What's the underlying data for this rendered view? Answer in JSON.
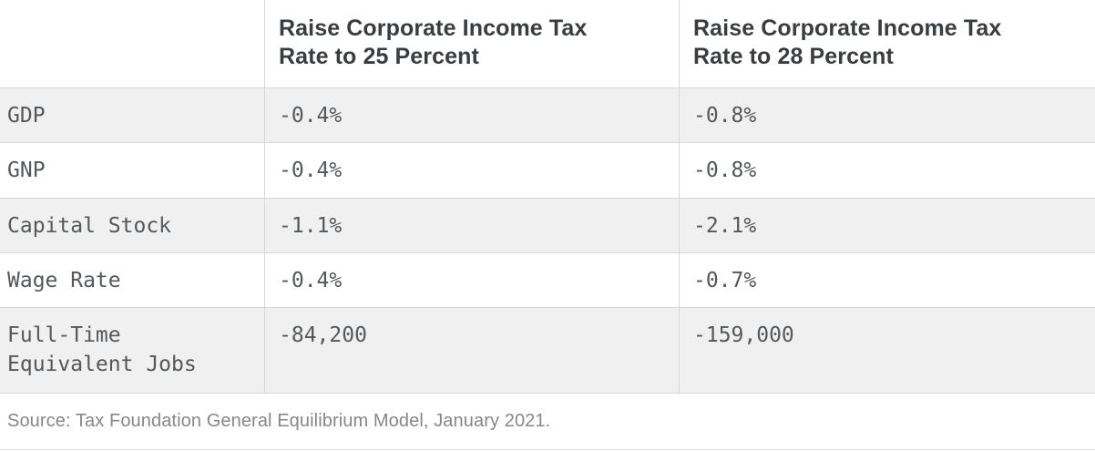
{
  "colors": {
    "stripe_row_bg": "#f0f0f0",
    "border": "#d6d6d6",
    "header_text": "#3a3d40",
    "body_text": "#54585a",
    "source_text": "#85888b"
  },
  "chart_data": {
    "type": "table",
    "columns": [
      "",
      "Raise Corporate Income Tax Rate to 25 Percent",
      "Raise Corporate Income Tax Rate to 28 Percent"
    ],
    "rows": [
      [
        "GDP",
        "-0.4%",
        "-0.8%"
      ],
      [
        "GNP",
        "-0.4%",
        "-0.8%"
      ],
      [
        "Capital Stock",
        "-1.1%",
        "-2.1%"
      ],
      [
        "Wage Rate",
        "-0.4%",
        "-0.7%"
      ],
      [
        "Full-Time Equivalent Jobs",
        "-84,200",
        "-159,000"
      ]
    ],
    "source": "Source: Tax Foundation General Equilibrium Model, January 2021."
  },
  "table": {
    "columns": [
      {
        "label": "Raise Corporate Income Tax\nRate to 25 Percent"
      },
      {
        "label": "Raise Corporate Income Tax\nRate to 28 Percent"
      }
    ],
    "rows": [
      {
        "label": "GDP",
        "values": [
          "-0.4%",
          "-0.8%"
        ]
      },
      {
        "label": "GNP",
        "values": [
          "-0.4%",
          "-0.8%"
        ]
      },
      {
        "label": "Capital Stock",
        "values": [
          "-1.1%",
          "-2.1%"
        ]
      },
      {
        "label": "Wage Rate",
        "values": [
          "-0.4%",
          "-0.7%"
        ]
      },
      {
        "label": "Full-Time\nEquivalent Jobs",
        "values": [
          "-84,200",
          "-159,000"
        ]
      }
    ],
    "source": "Source: Tax Foundation General Equilibrium Model, January 2021."
  }
}
